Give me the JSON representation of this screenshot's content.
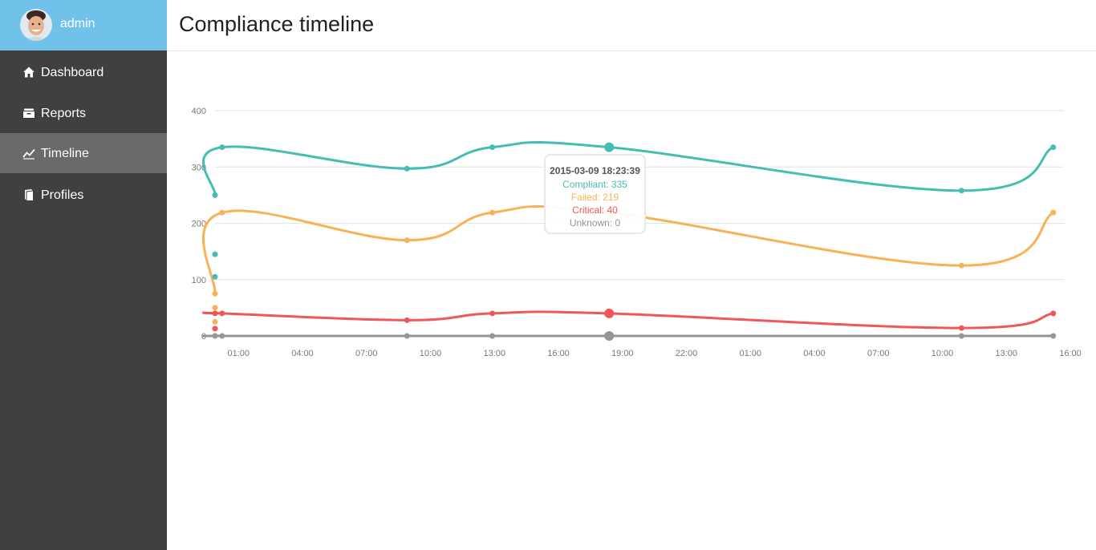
{
  "sidebar": {
    "username": "admin",
    "items": [
      {
        "label": "Dashboard",
        "icon": "home-icon",
        "active": false
      },
      {
        "label": "Reports",
        "icon": "inbox-icon",
        "active": false
      },
      {
        "label": "Timeline",
        "icon": "line-chart-icon",
        "active": true
      },
      {
        "label": "Profiles",
        "icon": "book-icon",
        "active": false
      }
    ],
    "colors": {
      "background": "#404040",
      "user_block": "#70c2ea",
      "active_item": "#6a6a6a"
    }
  },
  "header": {
    "title": "Compliance timeline"
  },
  "tooltip": {
    "date": "2015-03-09 18:23:39",
    "rows": [
      {
        "text": "Compliant: 335",
        "color": "#45bdb5"
      },
      {
        "text": "Failed: 219",
        "color": "#f9b157"
      },
      {
        "text": "Critical: 40",
        "color": "#f05758"
      },
      {
        "text": "Unknown: 0",
        "color": "#959595"
      }
    ]
  },
  "chart_data": {
    "type": "line",
    "x_labels": [
      "01:00",
      "04:00",
      "07:00",
      "10:00",
      "13:00",
      "16:00",
      "19:00",
      "22:00",
      "01:00",
      "04:00",
      "07:00",
      "10:00",
      "13:00",
      "16:00"
    ],
    "x_unit": "hours since 2015-03-08 23:54",
    "x_range": [
      0,
      39.8
    ],
    "ylim": [
      0,
      400
    ],
    "y_ticks": [
      0,
      100,
      200,
      300,
      400
    ],
    "grid": true,
    "legend": "none",
    "x": [
      0,
      0,
      0,
      0,
      0,
      0,
      0.33,
      9,
      13,
      18.48,
      35,
      39.3
    ],
    "series": [
      {
        "name": "Compliant",
        "color": "#45bdb5",
        "values": [
          250,
          145,
          105,
          null,
          null,
          null,
          335,
          297,
          335,
          335,
          258,
          335
        ]
      },
      {
        "name": "Failed",
        "color": "#f9b157",
        "values": [
          75,
          50,
          25,
          null,
          null,
          null,
          219,
          170,
          219,
          219,
          125,
          219
        ]
      },
      {
        "name": "Critical",
        "color": "#f05758",
        "values": [
          40,
          13,
          null,
          null,
          null,
          null,
          40,
          28,
          40,
          40,
          14,
          40
        ]
      },
      {
        "name": "Unknown",
        "color": "#959595",
        "values": [
          0,
          null,
          null,
          null,
          null,
          null,
          0,
          0,
          0,
          0,
          0,
          0
        ]
      }
    ],
    "highlight_index": 9
  }
}
